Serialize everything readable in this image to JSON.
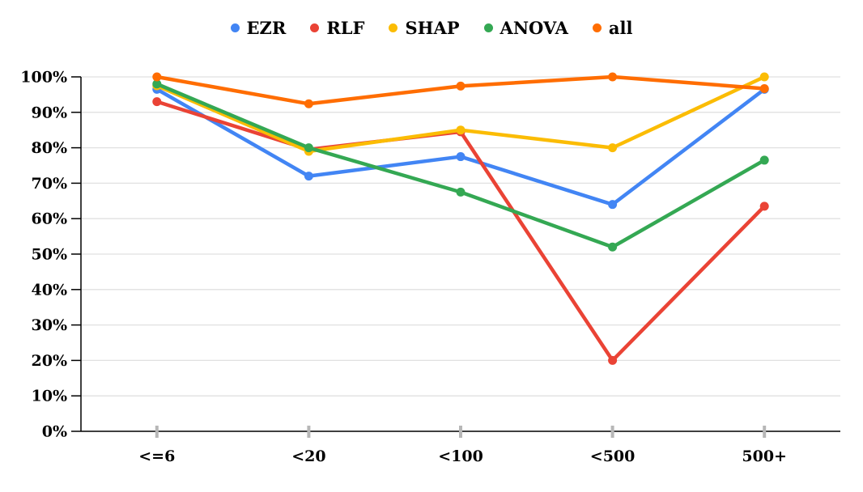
{
  "chart_data": {
    "type": "line",
    "title": "",
    "categories": [
      "<=6",
      "<20",
      "<100",
      "<500",
      "500+"
    ],
    "series": [
      {
        "name": "EZR",
        "color": "#4285F4",
        "values": [
          96.5,
          72.0,
          77.5,
          64.0,
          96.5
        ]
      },
      {
        "name": "RLF",
        "color": "#EA4335",
        "values": [
          93.0,
          79.5,
          84.5,
          20.0,
          63.5
        ]
      },
      {
        "name": "SHAP",
        "color": "#FBBC04",
        "values": [
          97.5,
          79.0,
          85.0,
          80.0,
          100.0
        ]
      },
      {
        "name": "ANOVA",
        "color": "#34A853",
        "values": [
          98.0,
          80.0,
          67.5,
          52.0,
          76.5
        ]
      },
      {
        "name": "all",
        "color": "#FF6D01",
        "values": [
          100.0,
          92.4,
          97.4,
          100.0,
          96.7
        ]
      }
    ],
    "xlabel": "",
    "ylabel": "",
    "ylim": [
      0,
      100
    ],
    "y_tick_step": 10,
    "y_tick_labels": [
      "0%",
      "10%",
      "20%",
      "30%",
      "40%",
      "50%",
      "60%",
      "70%",
      "80%",
      "90%",
      "100%"
    ],
    "legend_position": "top",
    "grid": true,
    "colors": {
      "background": "#FFFFFF",
      "axis": "#000000",
      "gridline": "#E0E0E0",
      "x_tick": "#B7B7B7",
      "label_text": "#000000"
    }
  }
}
